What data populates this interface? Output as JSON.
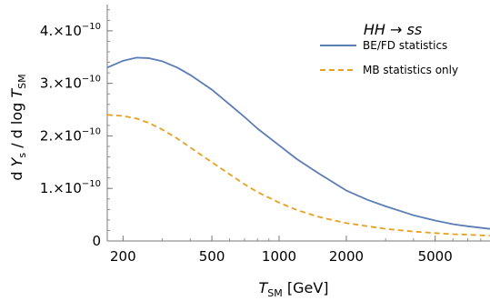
{
  "chart_data": {
    "type": "line",
    "x_scale": "log",
    "xlabel": "T_SM [GeV]",
    "xlabel_main": "T",
    "xlabel_sub": "SM",
    "xlabel_unit": " [GeV]",
    "ylabel": "d Y_s / d log T_SM",
    "xlim": [
      170,
      8800
    ],
    "ylim": [
      0,
      4.5e-10
    ],
    "x_ticks": [
      {
        "value": 200,
        "label": "200"
      },
      {
        "value": 500,
        "label": "500"
      },
      {
        "value": 1000,
        "label": "1000"
      },
      {
        "value": 2000,
        "label": "2000"
      },
      {
        "value": 5000,
        "label": "5000"
      }
    ],
    "y_ticks": [
      {
        "value": 0,
        "mant": "0",
        "exp": ""
      },
      {
        "value": 1e-10,
        "mant": "1.×10",
        "exp": "−10"
      },
      {
        "value": 2e-10,
        "mant": "2.×10",
        "exp": "−10"
      },
      {
        "value": 3e-10,
        "mant": "3.×10",
        "exp": "−10"
      },
      {
        "value": 4e-10,
        "mant": "4.×10",
        "exp": "−10"
      }
    ],
    "legend_title": "HH → ss",
    "legend_position": "top-right",
    "grid": false,
    "series": [
      {
        "name": "BE/FD statistics",
        "color": "#5b7db5",
        "dash": "solid",
        "x": [
          170,
          200,
          230,
          260,
          300,
          350,
          400,
          500,
          600,
          700,
          800,
          1000,
          1200,
          1500,
          2000,
          2500,
          3000,
          4000,
          5000,
          6000,
          7000,
          8800
        ],
        "y": [
          3.3e-10,
          3.43e-10,
          3.49e-10,
          3.48e-10,
          3.42e-10,
          3.3e-10,
          3.16e-10,
          2.88e-10,
          2.6e-10,
          2.36e-10,
          2.14e-10,
          1.82e-10,
          1.56e-10,
          1.29e-10,
          9.6e-11,
          7.8e-11,
          6.6e-11,
          4.9e-11,
          3.9e-11,
          3.2e-11,
          2.8e-11,
          2.3e-11
        ]
      },
      {
        "name": "MB statistics only",
        "color": "#e8a020",
        "dash": "dashed",
        "x": [
          170,
          200,
          230,
          260,
          300,
          350,
          400,
          500,
          600,
          700,
          800,
          1000,
          1200,
          1500,
          2000,
          2500,
          3000,
          4000,
          5000,
          6000,
          7000,
          8800
        ],
        "y": [
          2.4e-10,
          2.38e-10,
          2.33e-10,
          2.25e-10,
          2.12e-10,
          1.95e-10,
          1.78e-10,
          1.5e-10,
          1.27e-10,
          1.08e-10,
          9.3e-11,
          7.3e-11,
          5.9e-11,
          4.6e-11,
          3.4e-11,
          2.8e-11,
          2.3e-11,
          1.8e-11,
          1.5e-11,
          1.3e-11,
          1.2e-11,
          1e-11
        ]
      }
    ]
  }
}
